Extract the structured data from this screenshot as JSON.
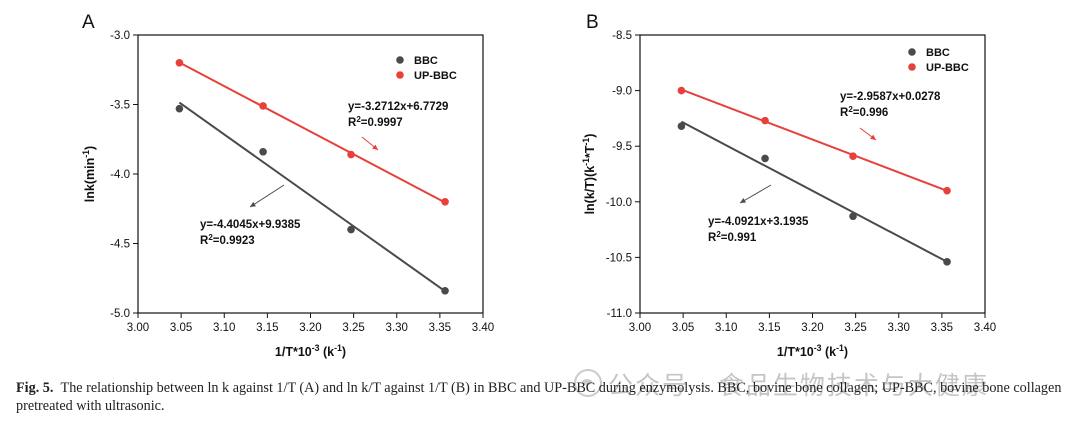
{
  "chart_data": [
    {
      "type": "scatter",
      "panel_label": "A",
      "xlabel": "1/T*10",
      "xlabel_sup": "-3",
      "xlabel_unit": " (k",
      "xlabel_unit_sup": "-1",
      "xlabel_end": ")",
      "ylabel": "lnk(min",
      "ylabel_sup": "-1",
      "ylabel_end": ")",
      "xlim": [
        3.0,
        3.4
      ],
      "ylim": [
        -5.0,
        -3.0
      ],
      "xticks": [
        "3.00",
        "3.05",
        "3.10",
        "3.15",
        "3.20",
        "3.25",
        "3.30",
        "3.35",
        "3.40"
      ],
      "yticks": [
        "-5.0",
        "-4.5",
        "-4.0",
        "-3.5",
        "-3.0"
      ],
      "legend_position": "top-right",
      "series": [
        {
          "name": "BBC",
          "color": "#4a4a4a",
          "x": [
            3.048,
            3.145,
            3.247,
            3.356
          ],
          "y": [
            -3.53,
            -3.84,
            -4.4,
            -4.84
          ],
          "fit": {
            "slope": -4.4045,
            "intercept": 9.9385,
            "equation": "y=-4.4045x+9.9385",
            "r2_label": "R",
            "r2_sup": "2",
            "r2_value": "=0.9923"
          }
        },
        {
          "name": "UP-BBC",
          "color": "#e8403a",
          "x": [
            3.048,
            3.145,
            3.247,
            3.356
          ],
          "y": [
            -3.2,
            -3.51,
            -3.86,
            -4.2
          ],
          "fit": {
            "slope": -3.2712,
            "intercept": 6.7729,
            "equation": "y=-3.2712x+6.7729",
            "r2_label": "R",
            "r2_sup": "2",
            "r2_value": "=0.9997"
          }
        }
      ]
    },
    {
      "type": "scatter",
      "panel_label": "B",
      "xlabel": "1/T*10",
      "xlabel_sup": "-3",
      "xlabel_unit": " (k",
      "xlabel_unit_sup": "-1",
      "xlabel_end": ")",
      "ylabel": "ln(k/T)(k",
      "ylabel_sup": "-1",
      "ylabel_mid": "*T",
      "ylabel_sup2": "-1",
      "ylabel_end": ")",
      "xlim": [
        3.0,
        3.4
      ],
      "ylim": [
        -11.0,
        -8.5
      ],
      "xticks": [
        "3.00",
        "3.05",
        "3.10",
        "3.15",
        "3.20",
        "3.25",
        "3.30",
        "3.35",
        "3.40"
      ],
      "yticks": [
        "-11.0",
        "-10.5",
        "-10.0",
        "-9.5",
        "-9.0",
        "-8.5"
      ],
      "legend_position": "top-right",
      "series": [
        {
          "name": "BBC",
          "color": "#4a4a4a",
          "x": [
            3.048,
            3.145,
            3.247,
            3.356
          ],
          "y": [
            -9.32,
            -9.61,
            -10.13,
            -10.54
          ],
          "fit": {
            "slope": -4.0921,
            "intercept": 3.1935,
            "equation": "y=-4.0921x+3.1935",
            "r2_label": "R",
            "r2_sup": "2",
            "r2_value": "=0.991"
          }
        },
        {
          "name": "UP-BBC",
          "color": "#e8403a",
          "x": [
            3.048,
            3.145,
            3.247,
            3.356
          ],
          "y": [
            -9.0,
            -9.27,
            -9.59,
            -9.9
          ],
          "fit": {
            "slope": -2.9587,
            "intercept": 0.0278,
            "equation": "y=-2.9587x+0.0278",
            "r2_label": "R",
            "r2_sup": "2",
            "r2_value": "=0.996"
          }
        }
      ]
    }
  ],
  "caption": {
    "label": "Fig. 5.",
    "text": "The relationship between ln k against 1/T (A) and ln k/T against 1/T (B) in BBC and UP-BBC during enzymolysis. BBC, bovine bone collagen; UP-BBC, bovine bone collagen pretreated with ultrasonic."
  },
  "watermark": "公众号 · 食品生物技术与大健康"
}
